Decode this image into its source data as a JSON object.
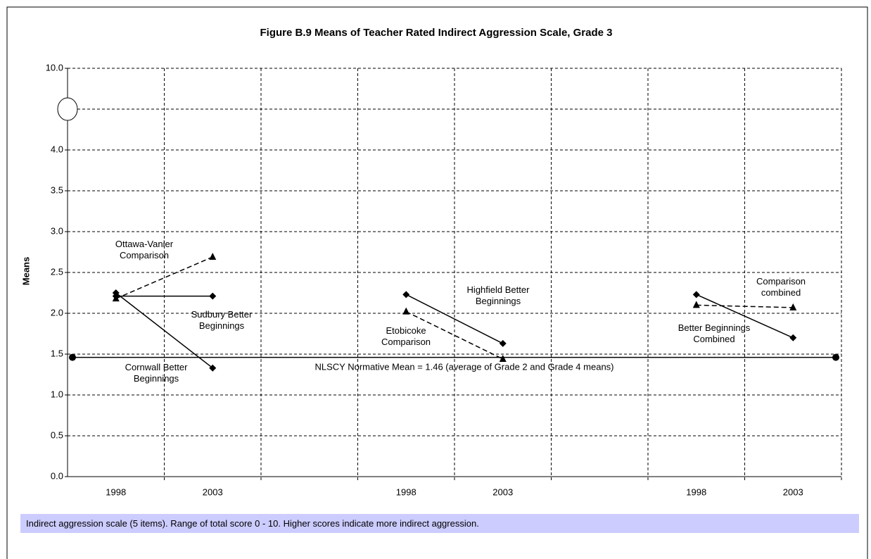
{
  "chart_data": {
    "type": "line",
    "title": "Figure B.9  Means of Teacher Rated Indirect Aggression Scale, Grade 3",
    "y_label": "Means",
    "categories": [
      "1998",
      "2003",
      null,
      "1998",
      "2003",
      null,
      "1998",
      "2003"
    ],
    "series": [
      {
        "name": "Sudbury Better Beginnings",
        "color": "#000000",
        "marker": "diamond",
        "dashed": false,
        "values": [
          2.21,
          2.21,
          null,
          null,
          null,
          null,
          null,
          null
        ]
      },
      {
        "name": "Cornwall Better Beginnings",
        "color": "#000000",
        "marker": "diamond",
        "dashed": false,
        "values": [
          2.25,
          1.33,
          null,
          null,
          null,
          null,
          null,
          null
        ]
      },
      {
        "name": "Ottawa-Vanier Comparison",
        "color": "#000000",
        "marker": "triangle",
        "dashed": true,
        "values": [
          2.18,
          2.69,
          null,
          null,
          null,
          null,
          null,
          null
        ]
      },
      {
        "name": "Highfield Better Beginnings",
        "color": "#000000",
        "marker": "diamond",
        "dashed": false,
        "values": [
          null,
          null,
          null,
          2.23,
          1.63,
          null,
          null,
          null
        ]
      },
      {
        "name": "Etobicoke Comparison",
        "color": "#000000",
        "marker": "triangle",
        "dashed": true,
        "values": [
          null,
          null,
          null,
          2.02,
          1.44,
          null,
          null,
          null
        ]
      },
      {
        "name": "Better Beginnings Combined",
        "color": "#000000",
        "marker": "diamond",
        "dashed": false,
        "values": [
          null,
          null,
          null,
          null,
          null,
          null,
          2.23,
          1.7
        ]
      },
      {
        "name": "Comparison combined",
        "color": "#000000",
        "marker": "triangle",
        "dashed": true,
        "values": [
          null,
          null,
          null,
          null,
          null,
          null,
          2.1,
          2.07
        ]
      }
    ],
    "reference_line": {
      "value": 1.46,
      "label": "NLSCY Normative Mean = 1.46 (average of Grade 2 and Grade 4 means)"
    },
    "ylim": [
      0,
      10
    ],
    "yticks": [
      {
        "value": 0,
        "label": "0.0"
      },
      0.5,
      {
        "value": 1,
        "label": "1.0"
      },
      1.5,
      {
        "value": 2,
        "label": "2.0"
      },
      2.5,
      {
        "value": 3,
        "label": "3.0"
      },
      3.5,
      {
        "value": 4,
        "label": "4.0"
      },
      {
        "value": 10,
        "label": "10.0"
      }
    ],
    "axis_break": true,
    "grid": true,
    "footnote": "Indirect aggression scale (5 items). Range of total score 0 - 10. Higher scores indicate more indirect aggression."
  }
}
